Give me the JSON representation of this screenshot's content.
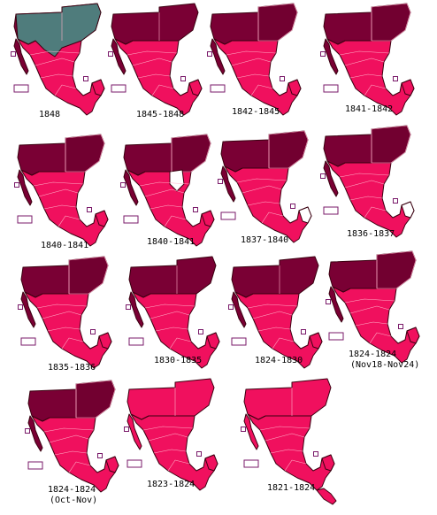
{
  "colors": {
    "mexico": "#f0105e",
    "territory": "#7a0034",
    "texas_dark": "#720030",
    "us_ceded": "#4f7c7c",
    "gap_white": "#ffffff",
    "outline": "#3a0010",
    "borders": "#ffb0c8",
    "marker": "#7a1a6a"
  },
  "maps": [
    {
      "label": "1848",
      "sub": "",
      "variant": "1848"
    },
    {
      "label": "1845-1848",
      "sub": "",
      "variant": "north_solid"
    },
    {
      "label": "1842-1845",
      "sub": "",
      "variant": "north_split"
    },
    {
      "label": "1841-1842",
      "sub": "",
      "variant": "north_split"
    },
    {
      "label": "1840-1841",
      "sub": "",
      "variant": "north_split"
    },
    {
      "label": "1840-1841",
      "sub": "",
      "variant": "rio_grande"
    },
    {
      "label": "1837-1840",
      "sub": "",
      "variant": "yucatan_white"
    },
    {
      "label": "1836-1837",
      "sub": "",
      "variant": "yucatan_white"
    },
    {
      "label": "1835-1836",
      "sub": "",
      "variant": "north_split"
    },
    {
      "label": "1830-1835",
      "sub": "",
      "variant": "north_solid"
    },
    {
      "label": "1824-1830",
      "sub": "",
      "variant": "north_solid"
    },
    {
      "label": "1824-1824",
      "sub": "(Nov18-Nov24)",
      "variant": "north_split"
    },
    {
      "label": "1824-1824",
      "sub": "(Oct-Nov)",
      "variant": "north_split"
    },
    {
      "label": "1823-1824",
      "sub": "",
      "variant": "all_pink"
    },
    {
      "label": "1821-1824",
      "sub": "",
      "variant": "all_pink_ca"
    }
  ]
}
